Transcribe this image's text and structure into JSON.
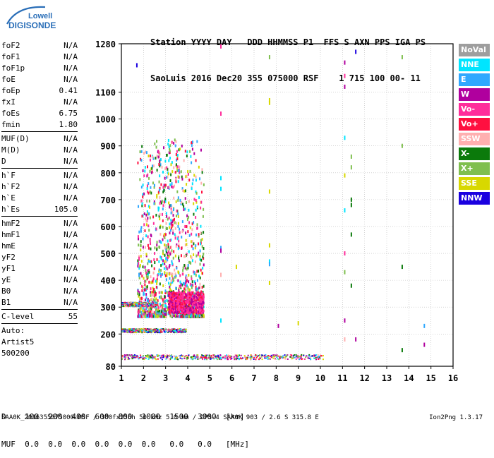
{
  "logo": {
    "line1": "Lowell",
    "line2": "DIGISONDE"
  },
  "header": {
    "line1": "Station YYYY DAY   DDD HHMMSS P1  FFS S AXN PPS IGA PS",
    "line2": "SaoLuis 2016 Dec20 355 075000 RSF    1 715 100 00- 11"
  },
  "params": {
    "group1": [
      {
        "label": "foF2",
        "value": "N/A"
      },
      {
        "label": "foF1",
        "value": "N/A"
      },
      {
        "label": "foF1p",
        "value": "N/A"
      },
      {
        "label": "foE",
        "value": "N/A"
      },
      {
        "label": "foEp",
        "value": "0.41"
      },
      {
        "label": "fxI",
        "value": "N/A"
      },
      {
        "label": "foEs",
        "value": "6.75"
      },
      {
        "label": "fmin",
        "value": "1.80"
      }
    ],
    "group2": [
      {
        "label": "MUF(D)",
        "value": "N/A"
      },
      {
        "label": "M(D)",
        "value": "N/A"
      },
      {
        "label": "D",
        "value": "N/A"
      }
    ],
    "group3": [
      {
        "label": "h`F",
        "value": "N/A"
      },
      {
        "label": "h`F2",
        "value": "N/A"
      },
      {
        "label": "h`E",
        "value": "N/A"
      },
      {
        "label": "h`Es",
        "value": "105.0"
      }
    ],
    "group4": [
      {
        "label": "hmF2",
        "value": "N/A"
      },
      {
        "label": "hmF1",
        "value": "N/A"
      },
      {
        "label": "hmE",
        "value": "N/A"
      },
      {
        "label": "yF2",
        "value": "N/A"
      },
      {
        "label": "yF1",
        "value": "N/A"
      },
      {
        "label": "yE",
        "value": "N/A"
      },
      {
        "label": "B0",
        "value": "N/A"
      },
      {
        "label": "B1",
        "value": "N/A"
      }
    ],
    "group5": [
      {
        "label": "C-level",
        "value": "55"
      }
    ],
    "auto_label": "Auto:",
    "artist": "Artist5",
    "version": "500200"
  },
  "legend": [
    {
      "label": "NoVal",
      "color": "#9e9e9e"
    },
    {
      "label": "NNE",
      "color": "#00e5ff"
    },
    {
      "label": "E",
      "color": "#2fa8ff"
    },
    {
      "label": "W",
      "color": "#b0009e"
    },
    {
      "label": "Vo-",
      "color": "#ff2d9b"
    },
    {
      "label": "Vo+",
      "color": "#ff1040"
    },
    {
      "label": "SSW",
      "color": "#ffb0b0"
    },
    {
      "label": "X-",
      "color": "#0b7a0b"
    },
    {
      "label": "X+",
      "color": "#7fbf4f"
    },
    {
      "label": "SSE",
      "color": "#d8d800"
    },
    {
      "label": "NNW",
      "color": "#1a00e0"
    }
  ],
  "freq_table": {
    "line1": "D    100  200  400  600  800  1000  1500  3000  [km]",
    "line2": "MUF  0.0  0.0  0.0  0.0  0.0  0.0   0.0   0.0   [MHz]"
  },
  "footer": {
    "left": "SAA0K_2016355075000.RSF / 300fx256h 50 kHz 5.0 km / DPS-4 SAA0K 903 / 2.6 S 315.8 E",
    "right": "Ion2Png 1.3.17"
  },
  "chart_data": {
    "type": "scatter",
    "title": "",
    "xlabel": "",
    "ylabel": "",
    "xlim": [
      1,
      16
    ],
    "ylim": [
      80,
      1280
    ],
    "xticks": [
      1,
      2,
      3,
      4,
      5,
      6,
      7,
      8,
      9,
      10,
      11,
      12,
      13,
      14,
      15,
      16
    ],
    "yticks": [
      80,
      200,
      300,
      400,
      500,
      600,
      700,
      800,
      900,
      1000,
      1100,
      1280
    ],
    "grid": true,
    "series": [
      {
        "name": "NNE",
        "color": "#00e5ff",
        "points": [
          [
            5.5,
            780
          ],
          [
            5.5,
            740
          ],
          [
            11.1,
            930
          ],
          [
            11.1,
            660
          ],
          [
            5.5,
            250
          ],
          [
            7.7,
            470
          ]
        ]
      },
      {
        "name": "E",
        "color": "#2fa8ff",
        "points": [
          [
            5.5,
            520
          ],
          [
            7.7,
            460
          ],
          [
            14.7,
            230
          ],
          [
            1.8,
            420
          ],
          [
            2.0,
            350
          ]
        ]
      },
      {
        "name": "W",
        "color": "#b0009e",
        "points": [
          [
            11.1,
            1120
          ],
          [
            11.1,
            1210
          ],
          [
            8.1,
            230
          ],
          [
            11.1,
            250
          ],
          [
            5.5,
            510
          ],
          [
            11.6,
            180
          ],
          [
            14.7,
            160
          ]
        ]
      },
      {
        "name": "Vo-",
        "color": "#ff2d9b",
        "points": [
          [
            5.5,
            1270
          ],
          [
            5.5,
            1020
          ],
          [
            11.1,
            1160
          ],
          [
            11.1,
            500
          ],
          [
            1.8,
            480
          ],
          [
            2.3,
            550
          ]
        ]
      },
      {
        "name": "SSW",
        "color": "#ffb0b0",
        "points": [
          [
            11.1,
            180
          ],
          [
            5.5,
            420
          ]
        ]
      },
      {
        "name": "X-",
        "color": "#0b7a0b",
        "points": [
          [
            11.4,
            700
          ],
          [
            11.4,
            680
          ],
          [
            11.4,
            570
          ],
          [
            11.4,
            380
          ],
          [
            13.7,
            450
          ],
          [
            13.7,
            140
          ]
        ]
      },
      {
        "name": "X+",
        "color": "#7fbf4f",
        "points": [
          [
            7.7,
            1230
          ],
          [
            11.4,
            860
          ],
          [
            11.4,
            820
          ],
          [
            11.1,
            430
          ],
          [
            13.7,
            1230
          ],
          [
            13.7,
            900
          ]
        ]
      },
      {
        "name": "SSE",
        "color": "#d8d800",
        "points": [
          [
            7.7,
            1070
          ],
          [
            7.7,
            1060
          ],
          [
            7.7,
            730
          ],
          [
            7.7,
            530
          ],
          [
            7.7,
            390
          ],
          [
            9.0,
            240
          ],
          [
            6.2,
            450
          ],
          [
            11.1,
            790
          ]
        ]
      },
      {
        "name": "NNW",
        "color": "#1a00e0",
        "points": [
          [
            11.6,
            1250
          ],
          [
            1.7,
            1200
          ]
        ]
      }
    ],
    "traces": [
      {
        "type": "cloud",
        "name": "F-layer spread",
        "x_range": [
          1.7,
          4.7
        ],
        "y_range": [
          270,
          930
        ],
        "description": "dense multicolor echoes"
      },
      {
        "type": "band",
        "name": "Es trace",
        "x_range": [
          1.0,
          10.1
        ],
        "y_range": [
          108,
          125
        ]
      },
      {
        "type": "band",
        "name": "E-height trace",
        "x_range": [
          1.0,
          3.9
        ],
        "y_range": [
          208,
          222
        ]
      },
      {
        "type": "band",
        "name": "F trace",
        "x_range": [
          1.0,
          2.6
        ],
        "y_range": [
          305,
          320
        ]
      }
    ]
  }
}
